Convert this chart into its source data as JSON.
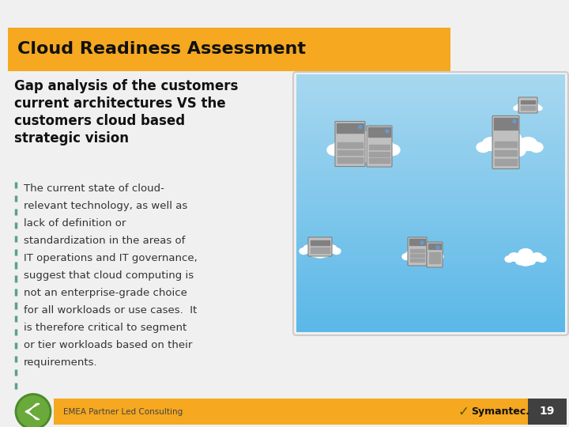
{
  "title": "Cloud Readiness Assessment",
  "subtitle_lines": [
    "Gap analysis of the customers",
    "current architectures VS the",
    "customers cloud based",
    "strategic vision"
  ],
  "body_lines": [
    "The current state of cloud-",
    "relevant technology, as well as",
    "lack of definition or",
    "standardization in the areas of",
    "IT operations and IT governance,",
    "suggest that cloud computing is",
    "not an enterprise-grade choice",
    "for all workloads or use cases.  It",
    "is therefore critical to segment",
    "or tier workloads based on their",
    "requirements."
  ],
  "footer_text": "EMEA Partner Led Consulting",
  "symantec_text": "Symantec.",
  "page_number": "19",
  "bg_color": "#f0f0f0",
  "title_bg_color": "#F5A820",
  "footer_bg_color": "#F5A820",
  "title_text_color": "#111111",
  "body_text_color": "#333333",
  "subtitle_text_color": "#111111",
  "dashed_line_color": "#5BA08A",
  "arrow_fill_color": "#6aaa3a",
  "arrow_outline_color": "#4a8a2a",
  "page_num_bg": "#404040",
  "sky_top": "#5BB8E8",
  "sky_bottom": "#A8D8F0",
  "cloud_color": "#ffffff",
  "server_body": "#c0c0c0",
  "server_dark": "#808080",
  "server_mid": "#a0a0a0"
}
